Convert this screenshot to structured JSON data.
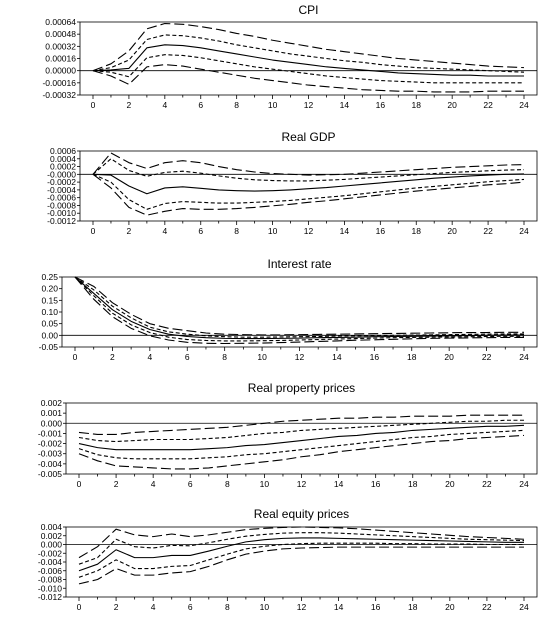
{
  "chart_data": [
    {
      "type": "line",
      "title": "CPI",
      "x": [
        0,
        1,
        2,
        3,
        4,
        5,
        6,
        7,
        8,
        9,
        10,
        11,
        12,
        13,
        14,
        15,
        16,
        17,
        18,
        19,
        20,
        21,
        22,
        23,
        24
      ],
      "xticks": [
        "0",
        "2",
        "4",
        "6",
        "8",
        "10",
        "12",
        "14",
        "16",
        "18",
        "20",
        "22",
        "24"
      ],
      "yticks": [
        "0.00064",
        "0.00048",
        "0.00032",
        "0.00016",
        "0.00000",
        "-0.00016",
        "-0.00032"
      ],
      "ylim": [
        -0.00032,
        0.00064
      ],
      "zero_line": true,
      "series": [
        {
          "style": "longdash",
          "values": [
            0,
            9e-05,
            0.00026,
            0.00055,
            0.00062,
            0.00061,
            0.00058,
            0.00054,
            0.00049,
            0.00045,
            0.0004,
            0.00036,
            0.00032,
            0.00028,
            0.00025,
            0.00022,
            0.00019,
            0.00016,
            0.00014,
            0.00012,
            0.0001,
            8e-05,
            6e-05,
            5e-05,
            4e-05
          ]
        },
        {
          "style": "shortdash",
          "values": [
            0,
            4e-05,
            0.00014,
            0.00041,
            0.00047,
            0.00046,
            0.00043,
            0.00039,
            0.00034,
            0.0003,
            0.00026,
            0.00022,
            0.00019,
            0.00016,
            0.00013,
            0.00011,
            8e-05,
            6e-05,
            4e-05,
            3e-05,
            2e-05,
            1e-05,
            0,
            -1e-05,
            -2e-05
          ]
        },
        {
          "style": "solid",
          "values": [
            0,
            1e-05,
            3e-05,
            0.0003,
            0.00034,
            0.00033,
            0.0003,
            0.00026,
            0.00022,
            0.00018,
            0.00014,
            0.00011,
            8e-05,
            5e-05,
            3e-05,
            1e-05,
            -1e-05,
            -3e-05,
            -4e-05,
            -5e-05,
            -6e-05,
            -6e-05,
            -7e-05,
            -7e-05,
            -7e-05
          ]
        },
        {
          "style": "shortdash",
          "values": [
            0,
            -2e-05,
            -8e-05,
            0.00017,
            0.00021,
            0.0002,
            0.00017,
            0.00013,
            9e-05,
            5e-05,
            2e-05,
            -1e-05,
            -4e-05,
            -7e-05,
            -9e-05,
            -0.00011,
            -0.00013,
            -0.00014,
            -0.00015,
            -0.00016,
            -0.00016,
            -0.00016,
            -0.00016,
            -0.00016,
            -0.00016
          ]
        },
        {
          "style": "longdash",
          "values": [
            0,
            -7e-05,
            -0.00018,
            5e-05,
            8e-05,
            6e-05,
            2e-05,
            -2e-05,
            -6e-05,
            -0.0001,
            -0.00013,
            -0.00016,
            -0.00019,
            -0.00021,
            -0.00023,
            -0.00025,
            -0.00026,
            -0.00027,
            -0.00027,
            -0.00028,
            -0.00028,
            -0.00028,
            -0.00027,
            -0.00027,
            -0.00027
          ]
        }
      ]
    },
    {
      "type": "line",
      "title": "Real GDP",
      "x": [
        0,
        1,
        2,
        3,
        4,
        5,
        6,
        7,
        8,
        9,
        10,
        11,
        12,
        13,
        14,
        15,
        16,
        17,
        18,
        19,
        20,
        21,
        22,
        23,
        24
      ],
      "xticks": [
        "0",
        "2",
        "4",
        "6",
        "8",
        "10",
        "12",
        "14",
        "16",
        "18",
        "20",
        "22",
        "24"
      ],
      "yticks": [
        "0.0006",
        "0.0004",
        "0.0002",
        "-0.0000",
        "-0.0002",
        "-0.0004",
        "-0.0006",
        "-0.0008",
        "-0.0010",
        "-0.0012"
      ],
      "ylim": [
        -0.0012,
        0.0006
      ],
      "zero_line": true,
      "series": [
        {
          "style": "longdash",
          "values": [
            0,
            0.00055,
            0.0003,
            0.00015,
            0.0003,
            0.00035,
            0.0003,
            0.0002,
            0.00012,
            6e-05,
            2e-05,
            0,
            -2e-05,
            -1e-05,
            0,
            3e-05,
            6e-05,
            9e-05,
            0.00012,
            0.00015,
            0.00018,
            0.0002,
            0.00022,
            0.00024,
            0.00025
          ]
        },
        {
          "style": "shortdash",
          "values": [
            0,
            0.0004,
            0.0001,
            -5e-05,
            5e-05,
            8e-05,
            3e-05,
            -4e-05,
            -0.0001,
            -0.00014,
            -0.00016,
            -0.00017,
            -0.00017,
            -0.00015,
            -0.00013,
            -0.0001,
            -7e-05,
            -4e-05,
            -1e-05,
            2e-05,
            5e-05,
            7e-05,
            9e-05,
            0.00011,
            0.00012
          ]
        },
        {
          "style": "solid",
          "values": [
            0,
            -2e-05,
            -0.0003,
            -0.0005,
            -0.00035,
            -0.00032,
            -0.00036,
            -0.0004,
            -0.00042,
            -0.00043,
            -0.00042,
            -0.0004,
            -0.00037,
            -0.00034,
            -0.0003,
            -0.00026,
            -0.00022,
            -0.00018,
            -0.00014,
            -0.0001,
            -7e-05,
            -4e-05,
            -2e-05,
            0,
            1e-05
          ]
        },
        {
          "style": "shortdash",
          "values": [
            0,
            -0.0002,
            -0.00065,
            -0.0009,
            -0.00075,
            -0.0007,
            -0.00072,
            -0.00074,
            -0.00074,
            -0.00072,
            -0.0007,
            -0.00067,
            -0.00063,
            -0.00059,
            -0.00055,
            -0.0005,
            -0.00045,
            -0.0004,
            -0.00035,
            -0.00031,
            -0.00027,
            -0.00023,
            -0.00019,
            -0.00016,
            -0.00013
          ]
        },
        {
          "style": "longdash",
          "values": [
            0,
            -0.00035,
            -0.00085,
            -0.00105,
            -0.00095,
            -0.00088,
            -0.0009,
            -0.0009,
            -0.00088,
            -0.00085,
            -0.00081,
            -0.00077,
            -0.00072,
            -0.00068,
            -0.00063,
            -0.00058,
            -0.00053,
            -0.00048,
            -0.00043,
            -0.00039,
            -0.00035,
            -0.00031,
            -0.00027,
            -0.00024,
            -0.0002
          ]
        }
      ]
    },
    {
      "type": "line",
      "title": "Interest rate",
      "x": [
        0,
        1,
        2,
        3,
        4,
        5,
        6,
        7,
        8,
        9,
        10,
        11,
        12,
        13,
        14,
        15,
        16,
        17,
        18,
        19,
        20,
        21,
        22,
        23,
        24
      ],
      "xticks": [
        "0",
        "2",
        "4",
        "6",
        "8",
        "10",
        "12",
        "14",
        "16",
        "18",
        "20",
        "22",
        "24"
      ],
      "yticks": [
        "0.25",
        "0.20",
        "0.15",
        "0.10",
        "0.05",
        "0.00",
        "-0.05"
      ],
      "ylim": [
        -0.05,
        0.25
      ],
      "zero_line": true,
      "series": [
        {
          "style": "longdash",
          "values": [
            0.25,
            0.21,
            0.14,
            0.09,
            0.05,
            0.03,
            0.02,
            0.01,
            0.005,
            0.003,
            0.002,
            0.002,
            0.003,
            0.004,
            0.005,
            0.006,
            0.007,
            0.008,
            0.009,
            0.01,
            0.011,
            0.012,
            0.012,
            0.013,
            0.013
          ]
        },
        {
          "style": "shortdash",
          "values": [
            0.25,
            0.195,
            0.125,
            0.075,
            0.035,
            0.015,
            0.005,
            -0.002,
            -0.006,
            -0.008,
            -0.008,
            -0.007,
            -0.006,
            -0.005,
            -0.003,
            -0.002,
            -0.001,
            0,
            0.001,
            0.002,
            0.003,
            0.004,
            0.005,
            0.006,
            0.006
          ]
        },
        {
          "style": "solid",
          "values": [
            0.25,
            0.18,
            0.11,
            0.06,
            0.025,
            0.005,
            -0.005,
            -0.01,
            -0.013,
            -0.014,
            -0.014,
            -0.013,
            -0.012,
            -0.01,
            -0.009,
            -0.008,
            -0.006,
            -0.005,
            -0.004,
            -0.003,
            -0.002,
            -0.001,
            0,
            0.001,
            0.001
          ]
        },
        {
          "style": "shortdash",
          "values": [
            0.25,
            0.17,
            0.095,
            0.045,
            0.012,
            -0.008,
            -0.018,
            -0.022,
            -0.024,
            -0.024,
            -0.023,
            -0.022,
            -0.02,
            -0.018,
            -0.016,
            -0.014,
            -0.012,
            -0.01,
            -0.009,
            -0.008,
            -0.007,
            -0.006,
            -0.005,
            -0.004,
            -0.004
          ]
        },
        {
          "style": "longdash",
          "values": [
            0.25,
            0.155,
            0.08,
            0.03,
            -0.002,
            -0.02,
            -0.03,
            -0.034,
            -0.035,
            -0.034,
            -0.033,
            -0.031,
            -0.029,
            -0.026,
            -0.024,
            -0.021,
            -0.019,
            -0.017,
            -0.015,
            -0.013,
            -0.012,
            -0.011,
            -0.01,
            -0.009,
            -0.009
          ]
        }
      ]
    },
    {
      "type": "line",
      "title": "Real property prices",
      "x": [
        0,
        1,
        2,
        3,
        4,
        5,
        6,
        7,
        8,
        9,
        10,
        11,
        12,
        13,
        14,
        15,
        16,
        17,
        18,
        19,
        20,
        21,
        22,
        23,
        24
      ],
      "xticks": [
        "0",
        "2",
        "4",
        "6",
        "8",
        "10",
        "12",
        "14",
        "16",
        "18",
        "20",
        "22",
        "24"
      ],
      "yticks": [
        "0.002",
        "0.001",
        "0.000",
        "-0.001",
        "-0.002",
        "-0.003",
        "-0.004",
        "-0.005"
      ],
      "ylim": [
        -0.005,
        0.002
      ],
      "zero_line": true,
      "series": [
        {
          "style": "longdash",
          "values": [
            -0.0009,
            -0.0011,
            -0.0011,
            -0.0009,
            -0.0008,
            -0.0007,
            -0.0006,
            -0.0005,
            -0.0004,
            -0.0002,
            0,
            0.0002,
            0.0003,
            0.0004,
            0.0005,
            0.0005,
            0.0006,
            0.0006,
            0.0007,
            0.0007,
            0.0007,
            0.0008,
            0.0008,
            0.0008,
            0.0008
          ]
        },
        {
          "style": "shortdash",
          "values": [
            -0.0014,
            -0.0017,
            -0.0018,
            -0.0017,
            -0.0016,
            -0.0016,
            -0.0016,
            -0.0015,
            -0.0014,
            -0.0012,
            -0.001,
            -0.0009,
            -0.0007,
            -0.0006,
            -0.0005,
            -0.0004,
            -0.0003,
            -0.0002,
            -0.0001,
            0,
            0.0001,
            0.0002,
            0.0002,
            0.0003,
            0.0003
          ]
        },
        {
          "style": "solid",
          "values": [
            -0.002,
            -0.0024,
            -0.0026,
            -0.0026,
            -0.0026,
            -0.0026,
            -0.0026,
            -0.0025,
            -0.0024,
            -0.0022,
            -0.0021,
            -0.0019,
            -0.0017,
            -0.0015,
            -0.0013,
            -0.0012,
            -0.001,
            -0.0009,
            -0.0007,
            -0.0006,
            -0.0005,
            -0.0004,
            -0.0003,
            -0.0003,
            -0.0002
          ]
        },
        {
          "style": "shortdash",
          "values": [
            -0.0025,
            -0.0031,
            -0.0034,
            -0.0035,
            -0.0035,
            -0.0035,
            -0.0035,
            -0.0034,
            -0.0033,
            -0.0031,
            -0.003,
            -0.0028,
            -0.0026,
            -0.0024,
            -0.0022,
            -0.002,
            -0.0018,
            -0.0016,
            -0.0014,
            -0.0013,
            -0.0011,
            -0.001,
            -0.0009,
            -0.0008,
            -0.0007
          ]
        },
        {
          "style": "longdash",
          "values": [
            -0.003,
            -0.0037,
            -0.0042,
            -0.0043,
            -0.0044,
            -0.0045,
            -0.0045,
            -0.0044,
            -0.0042,
            -0.004,
            -0.0038,
            -0.0036,
            -0.0033,
            -0.0031,
            -0.0028,
            -0.0026,
            -0.0024,
            -0.0022,
            -0.002,
            -0.0018,
            -0.0017,
            -0.0015,
            -0.0014,
            -0.0013,
            -0.0012
          ]
        }
      ]
    },
    {
      "type": "line",
      "title": "Real equity prices",
      "x": [
        0,
        1,
        2,
        3,
        4,
        5,
        6,
        7,
        8,
        9,
        10,
        11,
        12,
        13,
        14,
        15,
        16,
        17,
        18,
        19,
        20,
        21,
        22,
        23,
        24
      ],
      "xticks": [
        "0",
        "2",
        "4",
        "6",
        "8",
        "10",
        "12",
        "14",
        "16",
        "18",
        "20",
        "22",
        "24"
      ],
      "yticks": [
        "0.004",
        "0.002",
        "0.000",
        "-0.002",
        "-0.004",
        "-0.006",
        "-0.008",
        "-0.010",
        "-0.012"
      ],
      "ylim": [
        -0.012,
        0.004
      ],
      "zero_line": true,
      "series": [
        {
          "style": "longdash",
          "values": [
            -0.003,
            -0.0005,
            0.0035,
            0.0022,
            0.0018,
            0.0024,
            0.0018,
            0.0022,
            0.0028,
            0.0034,
            0.0037,
            0.0039,
            0.004,
            0.0039,
            0.0038,
            0.0036,
            0.0033,
            0.003,
            0.0027,
            0.0024,
            0.0021,
            0.0018,
            0.0016,
            0.0014,
            0.0012
          ]
        },
        {
          "style": "shortdash",
          "values": [
            -0.0045,
            -0.003,
            0.0012,
            -0.0005,
            -0.0008,
            -0.0002,
            -0.0003,
            0.0004,
            0.0012,
            0.0019,
            0.0023,
            0.0026,
            0.0027,
            0.0027,
            0.0026,
            0.0024,
            0.0022,
            0.002,
            0.0018,
            0.0016,
            0.0014,
            0.0012,
            0.0011,
            0.001,
            0.0009
          ]
        },
        {
          "style": "solid",
          "values": [
            -0.006,
            -0.0045,
            -0.0012,
            -0.003,
            -0.003,
            -0.0025,
            -0.0025,
            -0.0015,
            -0.0004,
            0.0006,
            0.0011,
            0.0014,
            0.0015,
            0.0015,
            0.0014,
            0.0013,
            0.0012,
            0.0011,
            0.001,
            0.0009,
            0.0008,
            0.0007,
            0.0006,
            0.0005,
            0.0005
          ]
        },
        {
          "style": "shortdash",
          "values": [
            -0.0075,
            -0.006,
            -0.0035,
            -0.0055,
            -0.0055,
            -0.005,
            -0.0048,
            -0.0035,
            -0.0022,
            -0.001,
            -0.0004,
            0,
            0.0002,
            0.0003,
            0.0003,
            0.0003,
            0.0003,
            0.0002,
            0.0002,
            0.0001,
            0.0001,
            0.0001,
            0,
            0,
            0
          ]
        },
        {
          "style": "longdash",
          "values": [
            -0.009,
            -0.008,
            -0.0055,
            -0.007,
            -0.007,
            -0.0065,
            -0.0062,
            -0.005,
            -0.0035,
            -0.0022,
            -0.0015,
            -0.001,
            -0.0008,
            -0.0007,
            -0.0006,
            -0.0006,
            -0.0006,
            -0.0006,
            -0.0006,
            -0.0006,
            -0.0006,
            -0.0006,
            -0.0006,
            -0.0006,
            -0.0006
          ]
        }
      ]
    }
  ]
}
